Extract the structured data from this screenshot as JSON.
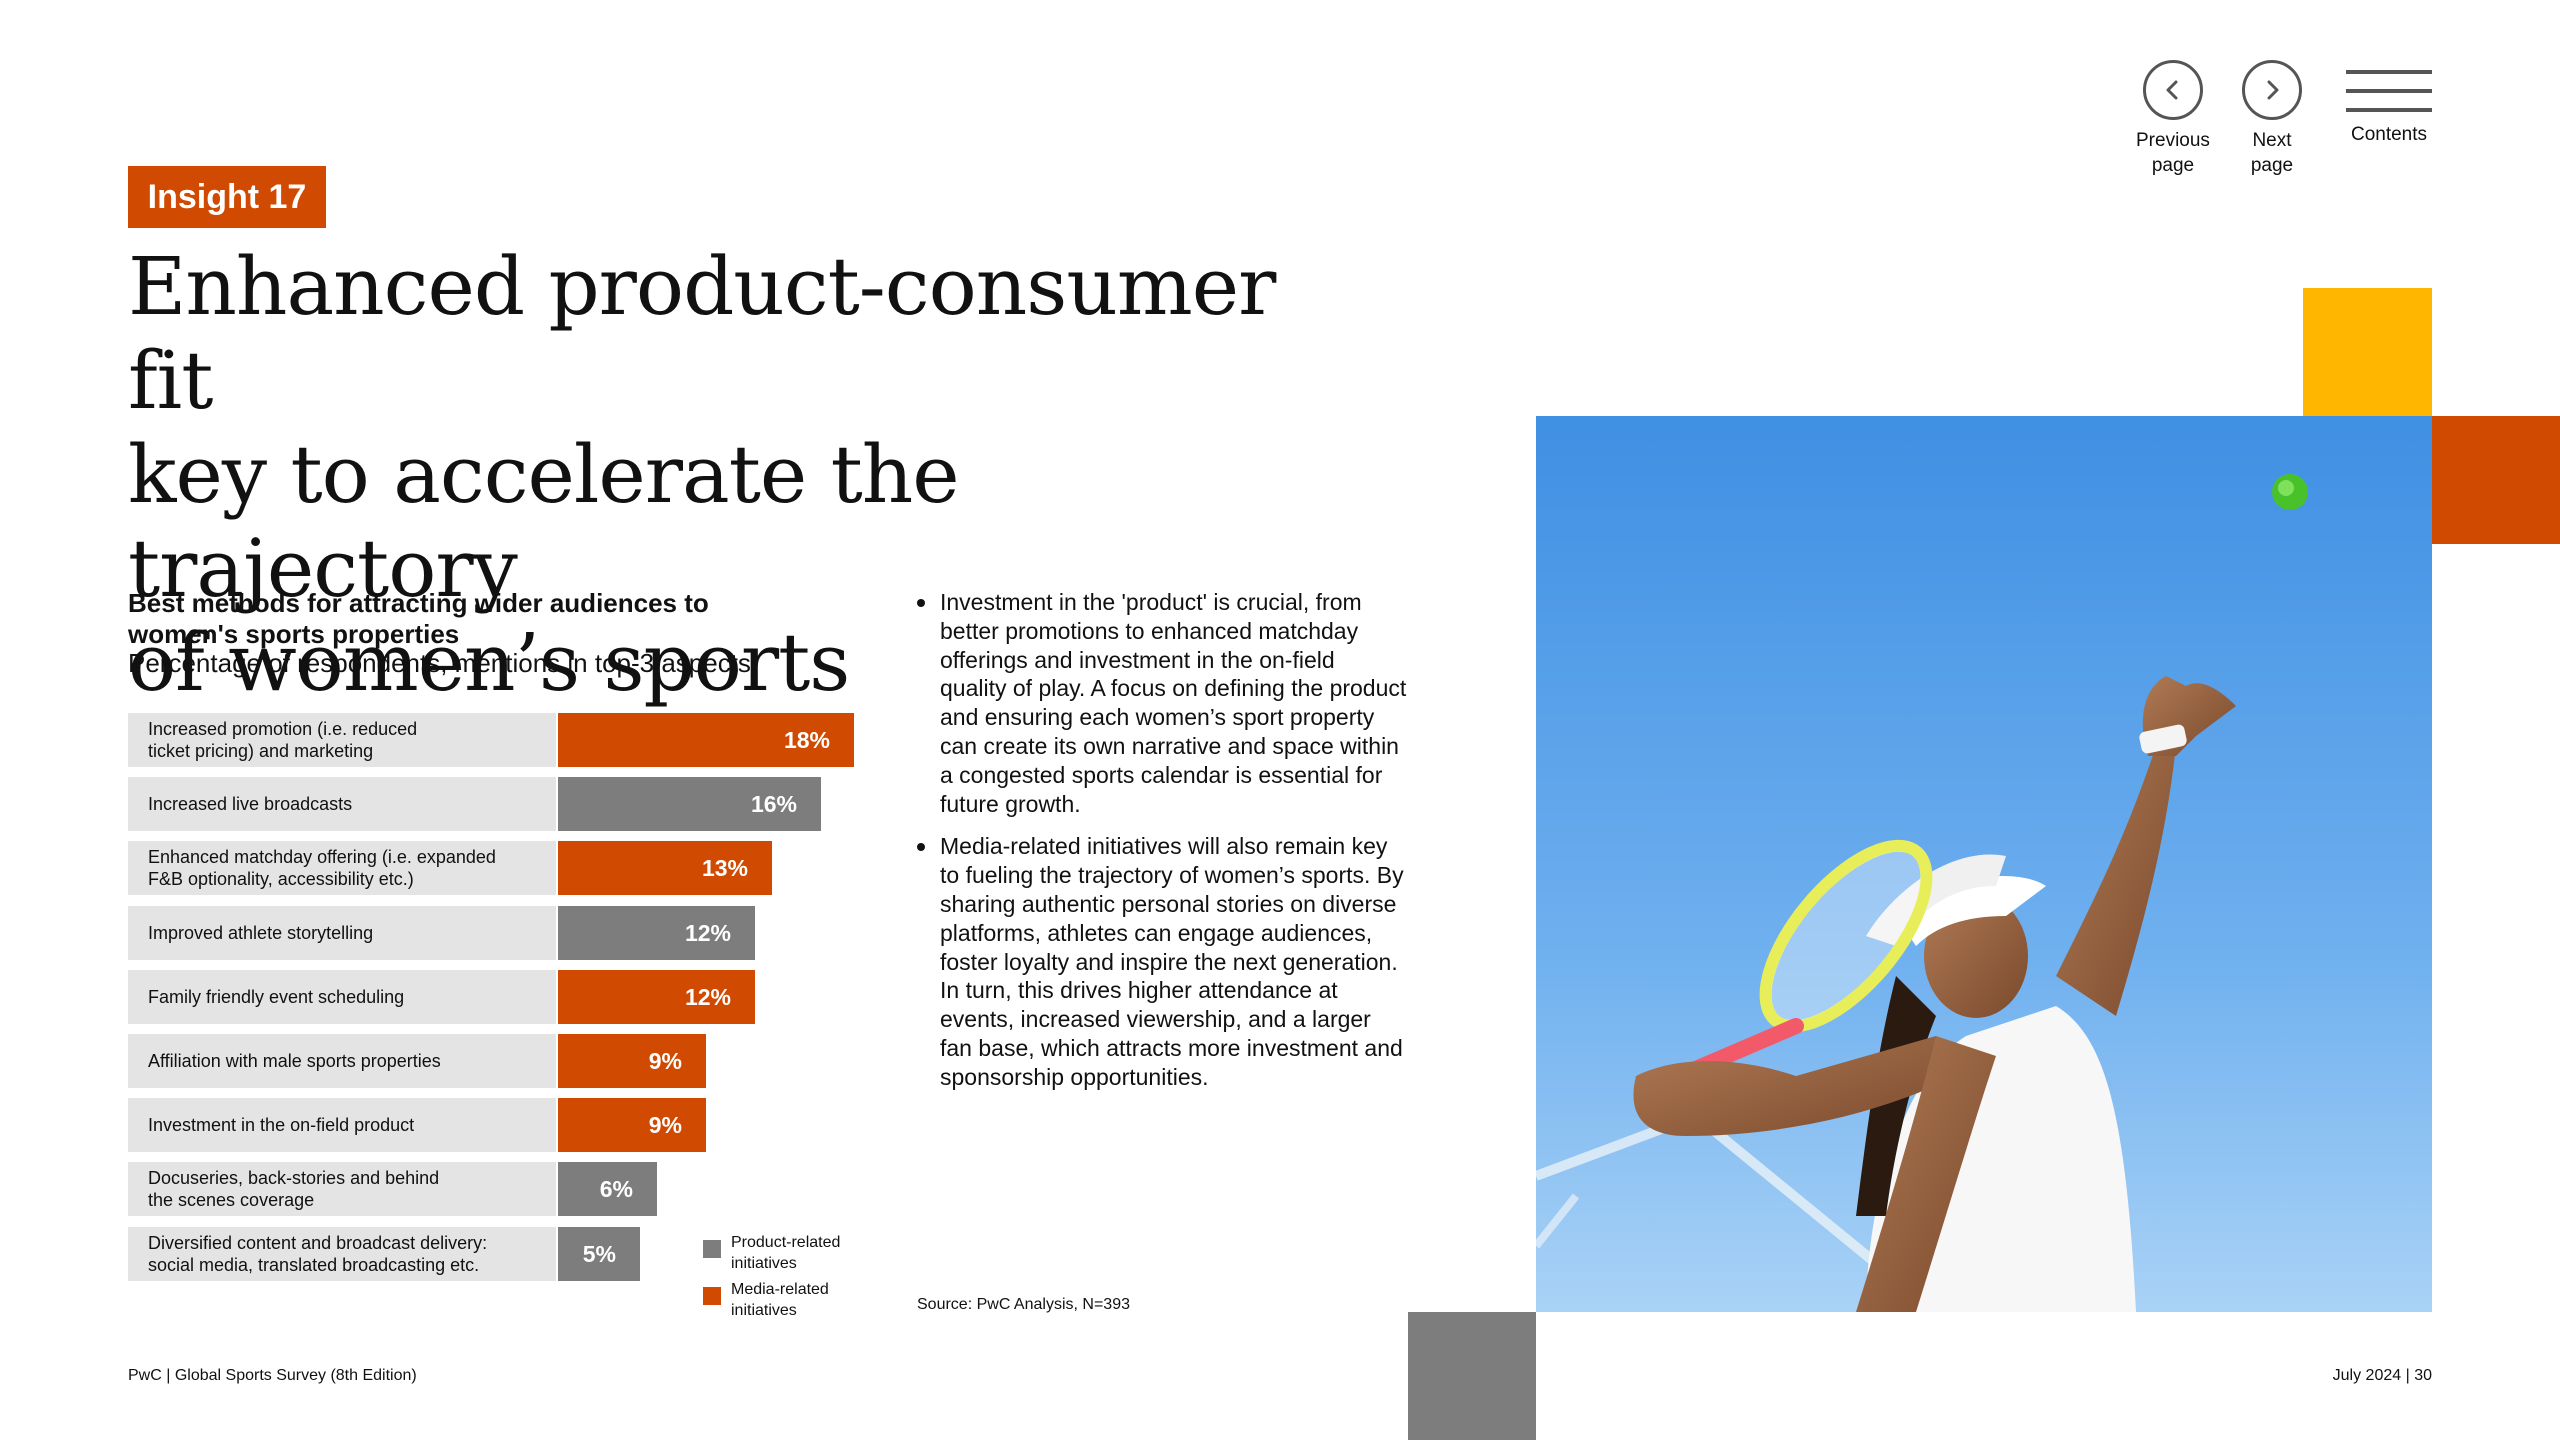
{
  "nav": {
    "previous": [
      "Previous",
      "page"
    ],
    "next": [
      "Next",
      "page"
    ],
    "contents": "Contents"
  },
  "insight_tag": "Insight 17",
  "headline": [
    "Enhanced product-consumer fit",
    "key to accelerate the trajectory",
    "of women’s sports"
  ],
  "chart_data": {
    "type": "bar",
    "orientation": "horizontal",
    "title": "Best methods for attracting wider audiences to women's sports properties",
    "title_lines": [
      "Best methods for attracting wider audiences to",
      "women's sports properties"
    ],
    "subtitle": "Percentage of respondents, mentions in top-3 aspects",
    "unit": "%",
    "xlim": [
      0,
      18
    ],
    "categories": [
      "Increased promotion (i.e. reduced ticket pricing) and marketing",
      "Increased live broadcasts",
      "Enhanced matchday offering (i.e. expanded F&B optionality, accessibility etc.)",
      "Improved athlete storytelling",
      "Family friendly event scheduling",
      "Affiliation with male sports properties",
      "Investment in the on-field product",
      "Docuseries, back-stories and behind the scenes coverage",
      "Diversified content and broadcast delivery: social media, translated broadcasting etc."
    ],
    "category_lines": [
      [
        "Increased promotion (i.e. reduced",
        "ticket pricing) and marketing"
      ],
      [
        "Increased live broadcasts"
      ],
      [
        "Enhanced matchday offering (i.e. expanded",
        "F&B optionality, accessibility etc.)"
      ],
      [
        "Improved athlete storytelling"
      ],
      [
        "Family friendly event scheduling"
      ],
      [
        "Affiliation with male sports properties"
      ],
      [
        "Investment in the on-field product"
      ],
      [
        "Docuseries, back-stories and behind",
        "the scenes coverage"
      ],
      [
        "Diversified content and broadcast delivery:",
        "social media, translated broadcasting etc."
      ]
    ],
    "values": [
      18,
      16,
      13,
      12,
      12,
      9,
      9,
      6,
      5
    ],
    "value_labels": [
      "18%",
      "16%",
      "13%",
      "12%",
      "12%",
      "9%",
      "9%",
      "6%",
      "5%"
    ],
    "groups": [
      "media",
      "product",
      "media",
      "product",
      "media",
      "media",
      "media",
      "product",
      "product"
    ],
    "legend": [
      {
        "key": "product",
        "lines": [
          "Product-related",
          "initiatives"
        ],
        "color": "#7d7d7d"
      },
      {
        "key": "media",
        "lines": [
          "Media-related",
          "initiatives"
        ],
        "color": "#d04a02"
      }
    ],
    "legend_placement": "bottom-right",
    "colors": {
      "product": "#7d7d7d",
      "media": "#d04a02",
      "label_bg": "#e4e4e4"
    }
  },
  "bullets": [
    "Investment in the 'product' is crucial, from better promotions to enhanced matchday offerings and investment in the on-field quality of play. A focus on defining the product and ensuring each women’s sport property can create its own narrative and space within a congested sports calendar is essential for future growth.",
    "Media-related initiatives will also remain key to fueling the trajectory of women’s sports. By sharing authentic personal stories on diverse platforms, athletes can engage audiences, foster loyalty and inspire the next generation. In turn, this drives higher attendance at events, increased viewership, and a larger fan base, which attracts more investment and sponsorship opportunities."
  ],
  "source": "Source: PwC Analysis, N=393",
  "footer": {
    "left": "PwC | Global Sports Survey (8th Edition)",
    "right": "July 2024 | 30"
  },
  "colors": {
    "accent_orange": "#d04a02",
    "accent_yellow": "#ffb600",
    "grey_block": "#7d7d7d"
  },
  "photo": {
    "subject": "tennis-player-serving"
  }
}
